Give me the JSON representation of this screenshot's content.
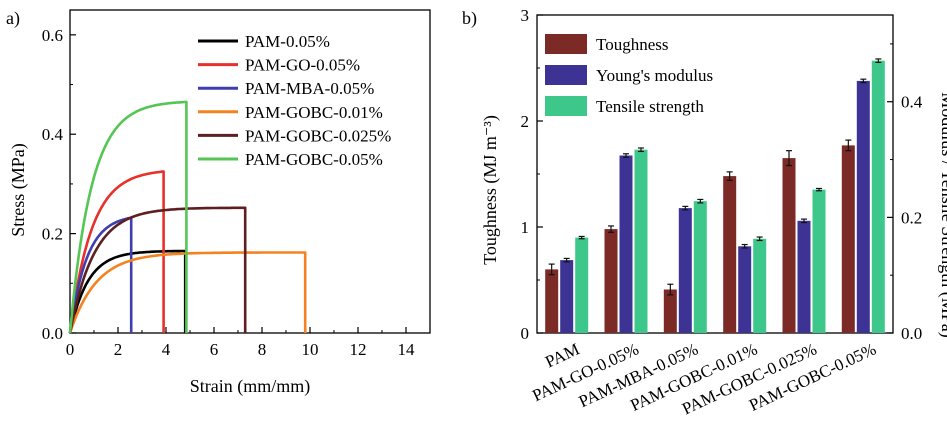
{
  "chart_data": [
    {
      "panel_label": "a)",
      "type": "line",
      "xlabel": "Strain (mm/mm)",
      "ylabel": "Stress (MPa)",
      "xlim": [
        0,
        15
      ],
      "ylim": [
        0,
        0.65
      ],
      "xticks": [
        0,
        2,
        4,
        6,
        8,
        10,
        12,
        14
      ],
      "yticks": [
        0.0,
        0.2,
        0.4,
        0.6
      ],
      "xtick_labels": [
        "0",
        "2",
        "4",
        "6",
        "8",
        "10",
        "12",
        "14"
      ],
      "ytick_labels": [
        "0.0",
        "0.2",
        "0.4",
        "0.6"
      ],
      "legend_position": "top-right",
      "series": [
        {
          "name": "PAM-0.05%",
          "color": "#000000",
          "k": 0.75,
          "final_strain": 4.8,
          "final_stress": 0.165,
          "points": [
            [
              0,
              0
            ],
            [
              0.5,
              0.08
            ],
            [
              1.0,
              0.108
            ],
            [
              2.0,
              0.138
            ],
            [
              3.0,
              0.152
            ],
            [
              4.0,
              0.16
            ],
            [
              4.8,
              0.165
            ]
          ]
        },
        {
          "name": "PAM-GO-0.05%",
          "color": "#e8312a",
          "k": 0.9,
          "final_strain": 3.9,
          "final_stress": 0.325,
          "points": [
            [
              0,
              0
            ],
            [
              0.5,
              0.14
            ],
            [
              1.0,
              0.205
            ],
            [
              2.0,
              0.27
            ],
            [
              3.0,
              0.305
            ],
            [
              3.9,
              0.325
            ]
          ]
        },
        {
          "name": "PAM-MBA-0.05%",
          "color": "#3d3fb0",
          "k": 0.7,
          "final_strain": 2.55,
          "final_stress": 0.232,
          "points": [
            [
              0,
              0
            ],
            [
              0.5,
              0.1
            ],
            [
              1.0,
              0.15
            ],
            [
              1.5,
              0.188
            ],
            [
              2.0,
              0.212
            ],
            [
              2.55,
              0.232
            ]
          ]
        },
        {
          "name": "PAM-GOBC-0.01%",
          "color": "#f58220",
          "k": 1.1,
          "final_strain": 9.8,
          "final_stress": 0.162,
          "points": [
            [
              0,
              0
            ],
            [
              0.5,
              0.1
            ],
            [
              1.0,
              0.14
            ],
            [
              2.0,
              0.158
            ],
            [
              3.0,
              0.163
            ],
            [
              6.0,
              0.163
            ],
            [
              9.8,
              0.162
            ]
          ]
        },
        {
          "name": "PAM-GOBC-0.025%",
          "color": "#5e1f20",
          "k": 1.0,
          "final_strain": 7.3,
          "final_stress": 0.252,
          "points": [
            [
              0,
              0
            ],
            [
              0.5,
              0.14
            ],
            [
              1.0,
              0.2
            ],
            [
              2.0,
              0.238
            ],
            [
              3.0,
              0.25
            ],
            [
              4.0,
              0.254
            ],
            [
              7.3,
              0.252
            ]
          ]
        },
        {
          "name": "PAM-GOBC-0.05%",
          "color": "#55c655",
          "k": 0.9,
          "final_strain": 4.85,
          "final_stress": 0.465,
          "points": [
            [
              0,
              0
            ],
            [
              0.5,
              0.2
            ],
            [
              1.0,
              0.3
            ],
            [
              2.0,
              0.385
            ],
            [
              3.0,
              0.425
            ],
            [
              4.0,
              0.45
            ],
            [
              4.85,
              0.465
            ]
          ]
        }
      ]
    },
    {
      "panel_label": "b)",
      "type": "bar",
      "xlabel": "",
      "ylabel": "Toughness (MJ m⁻³)",
      "ylabel_right": "Modulus / Tensile Strength (MPa)",
      "ylim": [
        0,
        3
      ],
      "ylim_right": [
        0,
        0.55
      ],
      "yticks": [
        0,
        1,
        2,
        3
      ],
      "yticks_right": [
        0.0,
        0.2,
        0.4
      ],
      "ytick_labels": [
        "0",
        "1",
        "2",
        "3"
      ],
      "ytick_labels_right": [
        "0.0",
        "0.2",
        "0.4"
      ],
      "categories": [
        "PAM",
        "PAM-GO-0.05%",
        "PAM-MBA-0.05%",
        "PAM-GOBC-0.01%",
        "PAM-GOBC-0.025%",
        "PAM-GOBC-0.05%"
      ],
      "legend_position": "top-left",
      "series": [
        {
          "name": "Toughness",
          "axis": "left",
          "color": "#7b2a26",
          "values": [
            0.6,
            0.98,
            0.41,
            1.48,
            1.65,
            1.77
          ],
          "errors": [
            0.05,
            0.03,
            0.05,
            0.04,
            0.07,
            0.05
          ]
        },
        {
          "name": "Young's modulus",
          "axis": "right",
          "color": "#3d3394",
          "values": [
            0.126,
            0.307,
            0.216,
            0.15,
            0.194,
            0.436
          ],
          "errors": [
            0.003,
            0.003,
            0.003,
            0.003,
            0.003,
            0.003
          ]
        },
        {
          "name": "Tensile strength",
          "axis": "right",
          "color": "#3ec78a",
          "values": [
            0.165,
            0.317,
            0.228,
            0.163,
            0.248,
            0.471
          ],
          "errors": [
            0.002,
            0.003,
            0.003,
            0.003,
            0.002,
            0.003
          ]
        }
      ]
    }
  ]
}
